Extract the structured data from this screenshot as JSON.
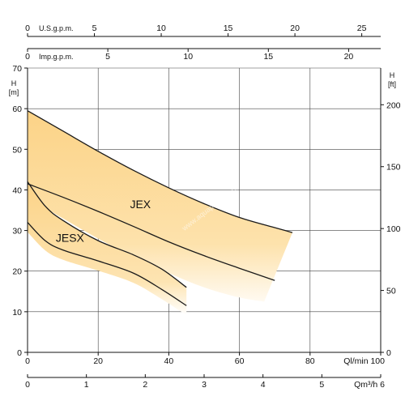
{
  "chart_data": {
    "type": "area",
    "grid": true,
    "x": {
      "unit": "Ql/min",
      "range": [
        0,
        100
      ],
      "ticks": [
        0,
        20,
        40,
        60,
        80,
        100
      ]
    },
    "y": {
      "unit": "H [m]",
      "range": [
        0,
        70
      ],
      "ticks": [
        0,
        10,
        20,
        30,
        40,
        50,
        60,
        70
      ]
    },
    "y_secondary": {
      "unit": "H [ft]",
      "ticks": [
        0,
        50,
        100,
        150,
        200
      ],
      "ratio_per_m": 3.2808
    },
    "x_secondary_bottom": {
      "unit": "Qm³/h",
      "range": [
        0,
        6
      ],
      "ticks": [
        0,
        1,
        2,
        3,
        4,
        5,
        6
      ]
    },
    "x_top_us": {
      "unit": "U.S.g.p.m.",
      "ratio_per_lmin": 0.26417,
      "ticks": [
        0,
        5,
        10,
        15,
        20,
        25
      ]
    },
    "x_top_imp": {
      "unit": "Imp.g.p.m.",
      "ratio_per_lmin": 0.21997,
      "ticks": [
        0,
        5,
        10,
        15,
        20
      ]
    },
    "series": [
      {
        "name": "JEX",
        "upper": [
          [
            0,
            59.5
          ],
          [
            10,
            54.5
          ],
          [
            20,
            49.5
          ],
          [
            30,
            44.8
          ],
          [
            40,
            40.5
          ],
          [
            50,
            36.6
          ],
          [
            60,
            33.2
          ],
          [
            70,
            30.7
          ],
          [
            75,
            29.5
          ]
        ],
        "middle": [
          [
            0,
            41.5
          ],
          [
            10,
            38.2
          ],
          [
            20,
            34.7
          ],
          [
            30,
            31.0
          ],
          [
            40,
            27.2
          ],
          [
            50,
            23.8
          ],
          [
            60,
            20.7
          ],
          [
            70,
            17.7
          ]
        ],
        "lower_edge": [
          [
            0,
            38
          ],
          [
            10,
            33
          ],
          [
            20,
            28
          ],
          [
            30,
            23.5
          ],
          [
            40,
            19.5
          ],
          [
            50,
            16
          ],
          [
            60,
            13.5
          ],
          [
            67,
            12.5
          ]
        ]
      },
      {
        "name": "JESX",
        "upper": [
          [
            0,
            42
          ],
          [
            5,
            36
          ],
          [
            10,
            32.5
          ],
          [
            20,
            27.5
          ],
          [
            30,
            24
          ],
          [
            38,
            20.5
          ],
          [
            45,
            16
          ]
        ],
        "lower": [
          [
            0,
            32
          ],
          [
            5,
            27.5
          ],
          [
            10,
            25.2
          ],
          [
            20,
            22.5
          ],
          [
            30,
            19.5
          ],
          [
            38,
            15.5
          ],
          [
            45,
            11.5
          ]
        ]
      }
    ],
    "annotations": [
      "www.aquapro.com.pl"
    ]
  },
  "colors": {
    "band_fill": "#fbd58a",
    "band_fade": "#ffffff",
    "curve": "#1a1a1a",
    "grid": "#444444"
  }
}
